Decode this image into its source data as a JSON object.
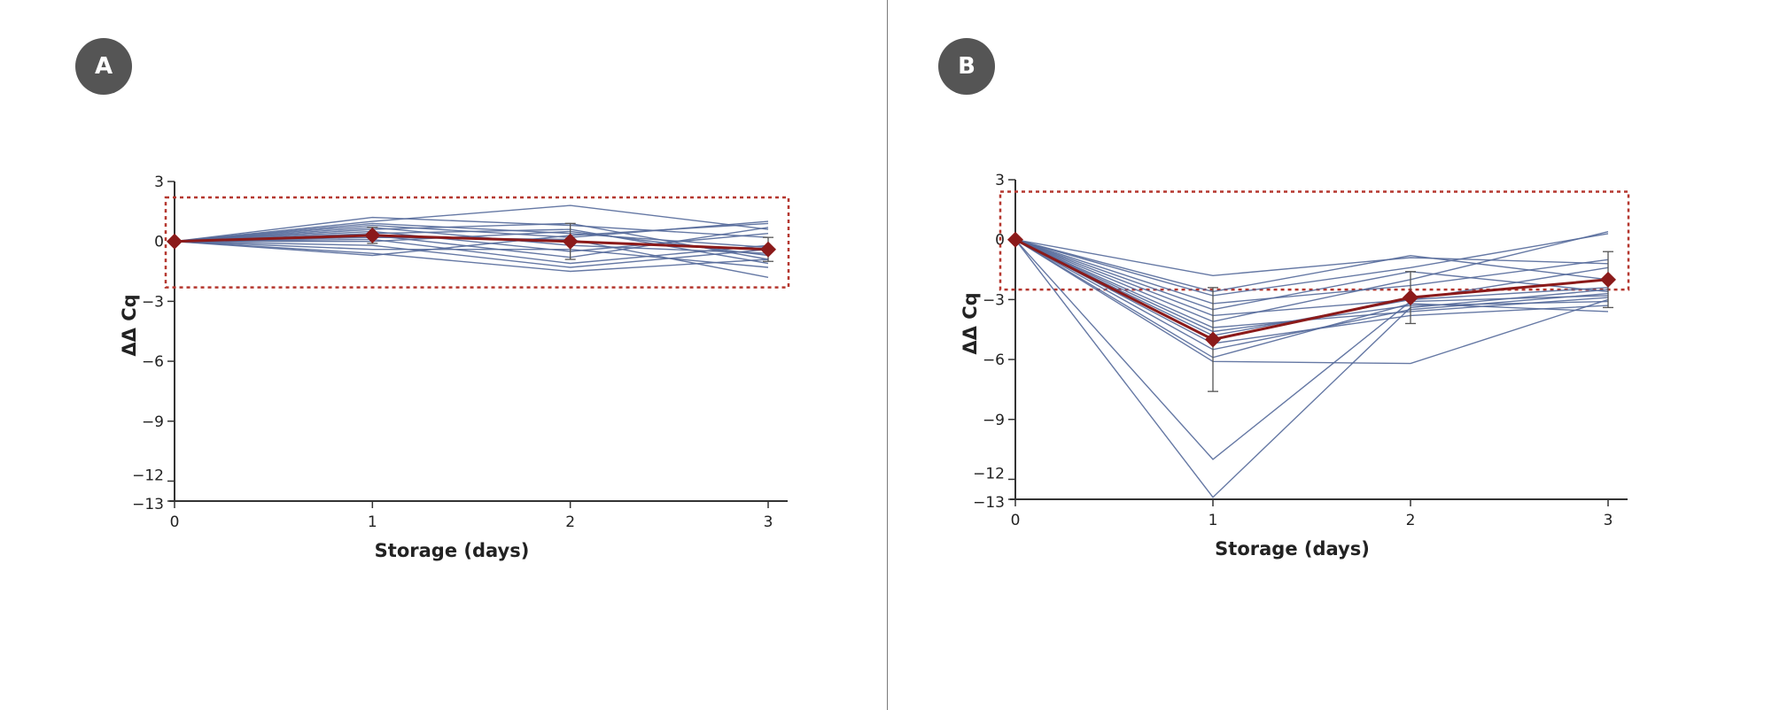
{
  "colors": {
    "individual_lines": "#54699a",
    "mean_line": "#8b1a1a",
    "dashed_box": "#b5372f",
    "axis": "#333333"
  },
  "chart_data": [
    {
      "panel": "A",
      "type": "line",
      "xlabel": "Storage (days)",
      "ylabel": "ΔΔ Cq",
      "x": [
        0,
        1,
        2,
        3
      ],
      "ylim": [
        -13,
        3
      ],
      "yticks": [
        3,
        0,
        -3,
        -6,
        -9,
        -12,
        -13
      ],
      "xticks": [
        0,
        1,
        2,
        3
      ],
      "dashed_band": [
        -2.3,
        2.2
      ],
      "mean": [
        0,
        0.3,
        0.0,
        -0.4
      ],
      "error": [
        0,
        0.4,
        0.9,
        0.6
      ],
      "series": [
        {
          "values": [
            0,
            1.2,
            0.8,
            0.2
          ]
        },
        {
          "values": [
            0,
            1.0,
            1.8,
            0.6
          ]
        },
        {
          "values": [
            0,
            0.9,
            0.4,
            -0.3
          ]
        },
        {
          "values": [
            0,
            0.8,
            0.2,
            1.0
          ]
        },
        {
          "values": [
            0,
            0.7,
            -0.2,
            -0.6
          ]
        },
        {
          "values": [
            0,
            0.6,
            0.9,
            -0.9
          ]
        },
        {
          "values": [
            0,
            0.5,
            -0.5,
            0.4
          ]
        },
        {
          "values": [
            0,
            0.4,
            0.6,
            -1.1
          ]
        },
        {
          "values": [
            0,
            0.3,
            -0.8,
            0.7
          ]
        },
        {
          "values": [
            0,
            0.2,
            0.1,
            -1.8
          ]
        },
        {
          "values": [
            0,
            0.1,
            -1.1,
            -0.2
          ]
        },
        {
          "values": [
            0,
            0.0,
            0.5,
            -0.7
          ]
        },
        {
          "values": [
            0,
            -0.2,
            -1.3,
            -0.4
          ]
        },
        {
          "values": [
            0,
            -0.4,
            -0.4,
            -1.3
          ]
        },
        {
          "values": [
            0,
            -0.6,
            -1.5,
            -0.9
          ]
        },
        {
          "values": [
            0,
            -0.7,
            0.3,
            0.9
          ]
        }
      ]
    },
    {
      "panel": "B",
      "type": "line",
      "xlabel": "Storage (days)",
      "ylabel": "ΔΔ Cq",
      "x": [
        0,
        1,
        2,
        3
      ],
      "ylim": [
        -13,
        3
      ],
      "yticks": [
        3,
        0,
        -3,
        -6,
        -9,
        -12,
        -13
      ],
      "xticks": [
        0,
        1,
        2,
        3
      ],
      "dashed_band": [
        -2.5,
        2.4
      ],
      "mean": [
        0,
        -5.0,
        -2.9,
        -2.0
      ],
      "error": [
        0,
        2.6,
        1.3,
        1.4
      ],
      "series": [
        {
          "values": [
            0,
            -1.8,
            -0.9,
            -1.2
          ]
        },
        {
          "values": [
            0,
            -2.6,
            -0.8,
            -2.0
          ]
        },
        {
          "values": [
            0,
            -2.8,
            -1.4,
            0.3
          ]
        },
        {
          "values": [
            0,
            -3.2,
            -2.3,
            -1.0
          ]
        },
        {
          "values": [
            0,
            -3.5,
            -1.6,
            -2.6
          ]
        },
        {
          "values": [
            0,
            -3.8,
            -3.0,
            -1.4
          ]
        },
        {
          "values": [
            0,
            -4.1,
            -2.0,
            0.4
          ]
        },
        {
          "values": [
            0,
            -4.4,
            -3.6,
            -2.9
          ]
        },
        {
          "values": [
            0,
            -4.6,
            -3.3,
            -3.1
          ]
        },
        {
          "values": [
            0,
            -4.8,
            -3.0,
            -2.4
          ]
        },
        {
          "values": [
            0,
            -5.2,
            -3.8,
            -3.3
          ]
        },
        {
          "values": [
            0,
            -5.5,
            -3.5,
            -2.7
          ]
        },
        {
          "values": [
            0,
            -5.9,
            -3.2,
            -3.6
          ]
        },
        {
          "values": [
            0,
            -6.1,
            -6.2,
            -3.0
          ]
        },
        {
          "values": [
            0,
            -11.0,
            -3.1,
            -2.8
          ]
        },
        {
          "values": [
            0,
            -12.9,
            -3.4,
            -2.5
          ]
        }
      ]
    }
  ],
  "panels": {
    "a": {
      "label": "A"
    },
    "b": {
      "label": "B"
    }
  }
}
